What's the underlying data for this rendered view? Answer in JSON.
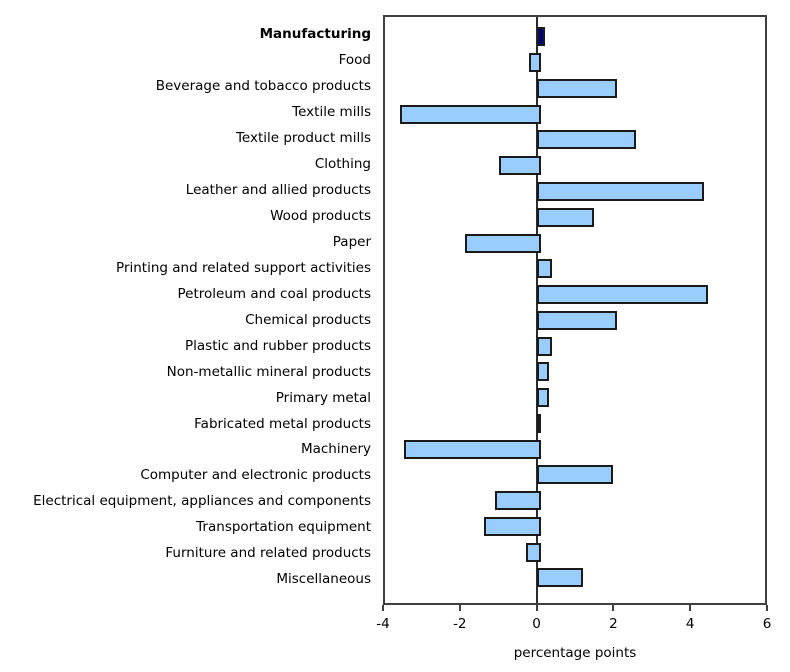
{
  "chart_data": {
    "type": "bar",
    "orientation": "horizontal",
    "title": "",
    "xlabel": "percentage points",
    "xlim": [
      -4,
      6
    ],
    "xticks": [
      -4,
      -2,
      0,
      2,
      4,
      6
    ],
    "grid": false,
    "legend": "none",
    "categories": [
      "Manufacturing",
      "Food",
      "Beverage and tobacco products",
      "Textile mills",
      "Textile product mills",
      "Clothing",
      "Leather and allied products",
      "Wood products",
      "Paper",
      "Printing and related support activities",
      "Petroleum and coal products",
      "Chemical products",
      "Plastic and rubber products",
      "Non-metallic mineral products",
      "Primary metal",
      "Fabricated metal products",
      "Machinery",
      "Computer and electronic products",
      "Electrical equipment, appliances and components",
      "Transportation equipment",
      "Furniture and related products",
      "Miscellaneous"
    ],
    "values": [
      0.1,
      -0.2,
      2.0,
      -3.6,
      2.5,
      -1.0,
      4.3,
      1.4,
      -1.9,
      0.3,
      4.4,
      2.0,
      0.3,
      0.2,
      0.2,
      0.0,
      -3.5,
      1.9,
      -1.1,
      -1.4,
      -0.3,
      1.1
    ],
    "emphasis_index": 0,
    "colors": {
      "bar_fill": "#99CCFF",
      "bar_border": "#1a1a1a",
      "emphasis_fill": "#000080",
      "axis": "#3f3f3f",
      "zero_line": "#2b2b2b",
      "text": "#000000"
    }
  }
}
